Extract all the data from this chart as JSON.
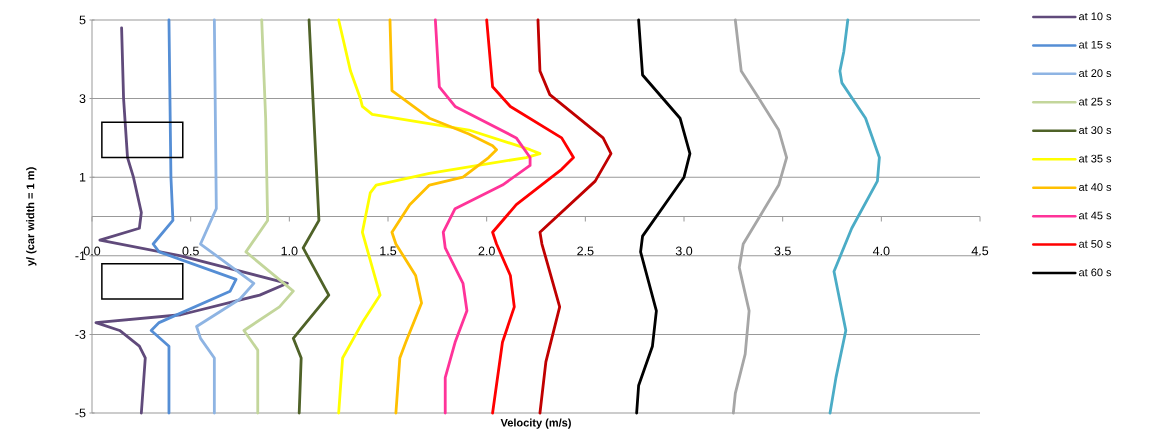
{
  "chart_data": {
    "type": "line",
    "xlabel": "Velocity (m/s)",
    "ylabel": "y/ (car width = 1 m)",
    "xlim": [
      0,
      4.5
    ],
    "ylim": [
      -5,
      5
    ],
    "xticks": [
      {
        "value": 0,
        "label": "0.0"
      },
      {
        "value": 0.5,
        "label": "0.5"
      },
      {
        "value": 1,
        "label": "1.0"
      },
      {
        "value": 1.5,
        "label": "1.5"
      },
      {
        "value": 2,
        "label": "2.0"
      },
      {
        "value": 2.5,
        "label": "2.5"
      },
      {
        "value": 3,
        "label": "3.0"
      },
      {
        "value": 3.5,
        "label": "3.5"
      },
      {
        "value": 4,
        "label": "4.0"
      },
      {
        "value": 4.5,
        "label": "4.5"
      }
    ],
    "yticks": [
      -5,
      -3,
      -1,
      1,
      3,
      5
    ],
    "grid": "y",
    "legend": "right",
    "series": [
      {
        "name": "at 10 s",
        "color": "#604a7b",
        "x": [
          0.15,
          0.16,
          0.18,
          0.21,
          0.25,
          0.24,
          0.04,
          0.45,
          0.99,
          0.85,
          0.45,
          0.02,
          0.14,
          0.24,
          0.27,
          0.25
        ],
        "values": [
          4.8,
          3.0,
          1.5,
          1.0,
          0.1,
          -0.3,
          -0.6,
          -1.0,
          -1.7,
          -2.0,
          -2.5,
          -2.7,
          -2.9,
          -3.3,
          -3.6,
          -5.0
        ]
      },
      {
        "name": "at 15 s",
        "color": "#558ed5",
        "x": [
          0.39,
          0.4,
          0.41,
          0.31,
          0.34,
          0.73,
          0.7,
          0.34,
          0.3,
          0.39,
          0.39
        ],
        "values": [
          5.0,
          1.0,
          -0.1,
          -0.7,
          -0.9,
          -1.6,
          -1.9,
          -2.7,
          -2.9,
          -3.3,
          -5.0
        ]
      },
      {
        "name": "at 20 s",
        "color": "#8eb4e3",
        "x": [
          0.62,
          0.63,
          0.55,
          0.82,
          0.75,
          0.53,
          0.55,
          0.62,
          0.62
        ],
        "values": [
          5.0,
          0.2,
          -0.7,
          -1.7,
          -2.1,
          -2.8,
          -3.1,
          -3.6,
          -5.0
        ]
      },
      {
        "name": "at 25 s",
        "color": "#c3d69b",
        "x": [
          0.86,
          0.88,
          0.89,
          0.78,
          1.02,
          0.95,
          0.77,
          0.84,
          0.84
        ],
        "values": [
          5.0,
          2.5,
          -0.1,
          -0.9,
          -1.9,
          -2.3,
          -2.9,
          -3.4,
          -5.0
        ]
      },
      {
        "name": "at 30 s",
        "color": "#4f6228",
        "x": [
          1.1,
          1.15,
          1.07,
          1.2,
          1.02,
          1.06,
          1.05
        ],
        "values": [
          5.0,
          -0.1,
          -0.8,
          -2.0,
          -3.1,
          -3.6,
          -5.0
        ]
      },
      {
        "name": "at 35 s",
        "color": "#ffff00",
        "x": [
          1.25,
          1.31,
          1.36,
          1.37,
          1.42,
          1.91,
          2.22,
          2.27,
          2.2,
          1.71,
          1.44,
          1.41,
          1.37,
          1.46,
          1.37,
          1.27,
          1.25
        ],
        "values": [
          5.0,
          3.7,
          3.0,
          2.8,
          2.6,
          2.2,
          1.7,
          1.6,
          1.5,
          1.1,
          0.8,
          0.6,
          -0.4,
          -2.0,
          -2.7,
          -3.6,
          -5.0
        ]
      },
      {
        "name": "at 40 s",
        "color": "#ffc000",
        "x": [
          1.51,
          1.52,
          1.71,
          1.91,
          2.03,
          2.05,
          2.01,
          1.88,
          1.71,
          1.61,
          1.52,
          1.54,
          1.64,
          1.67,
          1.59,
          1.56,
          1.54
        ],
        "values": [
          5.0,
          3.2,
          2.5,
          2.1,
          1.8,
          1.7,
          1.5,
          1.0,
          0.8,
          0.3,
          -0.4,
          -0.7,
          -1.5,
          -2.2,
          -3.2,
          -3.6,
          -5.0
        ]
      },
      {
        "name": "at 45 s",
        "color": "#ff3399",
        "x": [
          1.74,
          1.76,
          1.84,
          2.15,
          2.22,
          2.22,
          2.08,
          1.84,
          1.78,
          1.79,
          1.88,
          1.9,
          1.84,
          1.79,
          1.79
        ],
        "values": [
          5.0,
          3.3,
          2.8,
          2.0,
          1.5,
          1.3,
          0.8,
          0.2,
          -0.4,
          -0.8,
          -1.7,
          -2.4,
          -3.2,
          -4.1,
          -5.0
        ]
      },
      {
        "name": "at 50 s",
        "color": "#ff0000",
        "x": [
          2.0,
          2.03,
          2.12,
          2.38,
          2.44,
          2.38,
          2.15,
          2.03,
          2.05,
          2.12,
          2.14,
          2.08,
          2.03
        ],
        "values": [
          5.0,
          3.3,
          2.8,
          2.0,
          1.5,
          1.2,
          0.3,
          -0.4,
          -0.7,
          -1.5,
          -2.3,
          -3.2,
          -5.0
        ]
      },
      {
        "color": "#c00000",
        "x": [
          2.26,
          2.27,
          2.32,
          2.59,
          2.63,
          2.55,
          2.27,
          2.28,
          2.37,
          2.3,
          2.27
        ],
        "values": [
          5.0,
          3.7,
          3.1,
          2.0,
          1.6,
          0.9,
          -0.4,
          -0.7,
          -2.3,
          -3.7,
          -5.0
        ]
      },
      {
        "name": "at 60 s",
        "color": "#000000",
        "x": [
          2.77,
          2.79,
          2.98,
          3.03,
          3.0,
          2.79,
          2.78,
          2.86,
          2.84,
          2.77,
          2.76
        ],
        "values": [
          5.0,
          3.6,
          2.5,
          1.6,
          1.0,
          -0.5,
          -0.9,
          -2.4,
          -3.3,
          -4.3,
          -5.0
        ]
      },
      {
        "color": "#a6a6a6",
        "x": [
          3.26,
          3.29,
          3.38,
          3.48,
          3.52,
          3.48,
          3.3,
          3.28,
          3.33,
          3.31,
          3.26,
          3.25
        ],
        "values": [
          5.0,
          3.7,
          3.0,
          2.2,
          1.5,
          0.8,
          -0.7,
          -1.3,
          -2.4,
          -3.5,
          -4.5,
          -5.0
        ]
      },
      {
        "color": "#4bacc6",
        "x": [
          3.83,
          3.81,
          3.79,
          3.8,
          3.92,
          3.99,
          3.98,
          3.85,
          3.76,
          3.82,
          3.77,
          3.74
        ],
        "values": [
          5.0,
          4.2,
          3.7,
          3.4,
          2.5,
          1.5,
          0.9,
          -0.3,
          -1.4,
          -2.9,
          -4.1,
          -5.0
        ]
      }
    ]
  }
}
